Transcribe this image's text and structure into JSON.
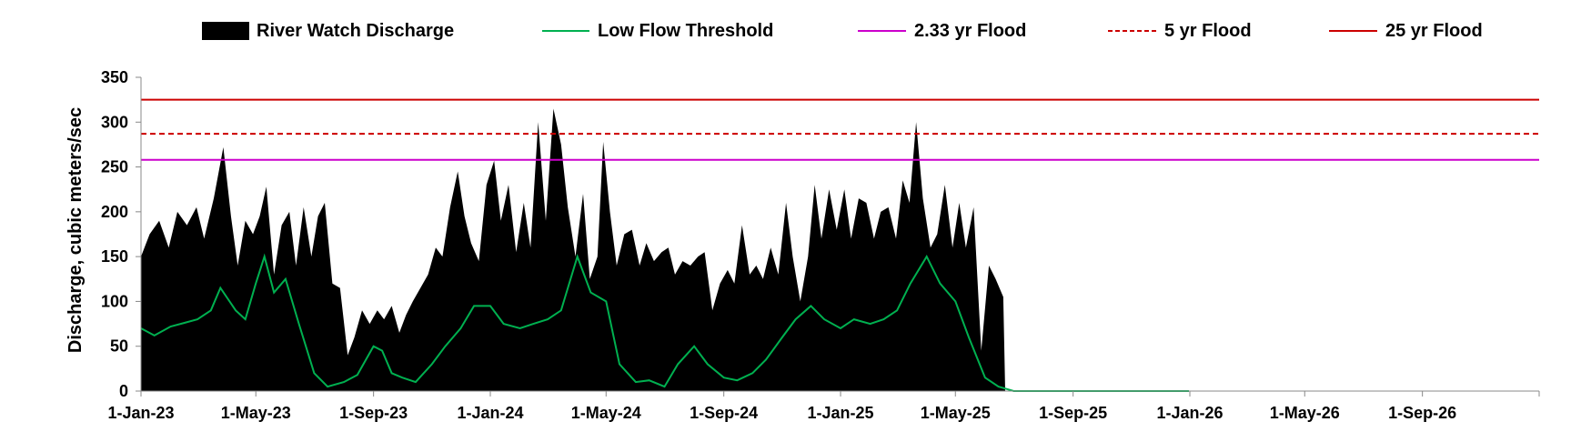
{
  "chart_data": {
    "type": "area",
    "title": "",
    "xlabel": "",
    "ylabel": "Discharge, cubic meters/sec",
    "ylim": [
      0,
      350
    ],
    "xlim": [
      "2023-01-01",
      "2026-12-31"
    ],
    "y_ticks": [
      "0",
      "50",
      "100",
      "150",
      "200",
      "250",
      "300",
      "350"
    ],
    "x_ticks": [
      "1-Jan-23",
      "1-May-23",
      "1-Sep-23",
      "1-Jan-24",
      "1-May-24",
      "1-Sep-24",
      "1-Jan-25",
      "1-May-25",
      "1-Sep-25",
      "1-Jan-26",
      "1-May-26",
      "1-Sep-26"
    ],
    "x_tick_dates": [
      "2023-01-01",
      "2023-05-01",
      "2023-09-01",
      "2024-01-01",
      "2024-05-01",
      "2024-09-01",
      "2025-01-01",
      "2025-05-01",
      "2025-09-01",
      "2026-01-01",
      "2026-05-01",
      "2026-09-01"
    ],
    "grid": false,
    "legend_position": "top",
    "legend": [
      {
        "label": "River Watch Discharge",
        "style": "area",
        "color": "#000000"
      },
      {
        "label": "Low Flow Threshold",
        "style": "line",
        "color": "#00b050"
      },
      {
        "label": "2.33 yr Flood",
        "style": "line",
        "color": "#cc00cc"
      },
      {
        "label": "5 yr Flood",
        "style": "dashed",
        "color": "#cc0000"
      },
      {
        "label": "25 yr Flood",
        "style": "line",
        "color": "#cc0000"
      }
    ],
    "series": [
      {
        "name": "River Watch Discharge",
        "kind": "area",
        "color": "#000000",
        "points": [
          [
            "2023-01-01",
            150
          ],
          [
            "2023-01-10",
            175
          ],
          [
            "2023-01-20",
            190
          ],
          [
            "2023-01-30",
            160
          ],
          [
            "2023-02-08",
            200
          ],
          [
            "2023-02-18",
            185
          ],
          [
            "2023-02-28",
            205
          ],
          [
            "2023-03-08",
            170
          ],
          [
            "2023-03-18",
            215
          ],
          [
            "2023-03-28",
            272
          ],
          [
            "2023-04-05",
            195
          ],
          [
            "2023-04-12",
            140
          ],
          [
            "2023-04-20",
            190
          ],
          [
            "2023-04-28",
            175
          ],
          [
            "2023-05-05",
            195
          ],
          [
            "2023-05-12",
            228
          ],
          [
            "2023-05-20",
            130
          ],
          [
            "2023-05-28",
            185
          ],
          [
            "2023-06-05",
            200
          ],
          [
            "2023-06-12",
            140
          ],
          [
            "2023-06-20",
            205
          ],
          [
            "2023-06-28",
            150
          ],
          [
            "2023-07-05",
            195
          ],
          [
            "2023-07-12",
            210
          ],
          [
            "2023-07-20",
            120
          ],
          [
            "2023-07-28",
            115
          ],
          [
            "2023-08-05",
            40
          ],
          [
            "2023-08-12",
            60
          ],
          [
            "2023-08-20",
            90
          ],
          [
            "2023-08-28",
            75
          ],
          [
            "2023-09-05",
            90
          ],
          [
            "2023-09-12",
            80
          ],
          [
            "2023-09-20",
            95
          ],
          [
            "2023-09-28",
            65
          ],
          [
            "2023-10-05",
            85
          ],
          [
            "2023-10-12",
            100
          ],
          [
            "2023-10-20",
            115
          ],
          [
            "2023-10-28",
            130
          ],
          [
            "2023-11-05",
            160
          ],
          [
            "2023-11-12",
            150
          ],
          [
            "2023-11-20",
            205
          ],
          [
            "2023-11-28",
            245
          ],
          [
            "2023-12-05",
            195
          ],
          [
            "2023-12-12",
            165
          ],
          [
            "2023-12-20",
            145
          ],
          [
            "2023-12-28",
            230
          ],
          [
            "2024-01-05",
            257
          ],
          [
            "2024-01-12",
            190
          ],
          [
            "2024-01-20",
            230
          ],
          [
            "2024-01-28",
            155
          ],
          [
            "2024-02-05",
            210
          ],
          [
            "2024-02-12",
            160
          ],
          [
            "2024-02-20",
            300
          ],
          [
            "2024-02-28",
            190
          ],
          [
            "2024-03-07",
            315
          ],
          [
            "2024-03-15",
            275
          ],
          [
            "2024-03-22",
            205
          ],
          [
            "2024-03-30",
            150
          ],
          [
            "2024-04-07",
            220
          ],
          [
            "2024-04-14",
            125
          ],
          [
            "2024-04-22",
            150
          ],
          [
            "2024-04-28",
            278
          ],
          [
            "2024-05-05",
            200
          ],
          [
            "2024-05-12",
            140
          ],
          [
            "2024-05-20",
            175
          ],
          [
            "2024-05-28",
            180
          ],
          [
            "2024-06-05",
            140
          ],
          [
            "2024-06-12",
            165
          ],
          [
            "2024-06-20",
            145
          ],
          [
            "2024-06-28",
            155
          ],
          [
            "2024-07-05",
            160
          ],
          [
            "2024-07-12",
            130
          ],
          [
            "2024-07-20",
            145
          ],
          [
            "2024-07-28",
            140
          ],
          [
            "2024-08-05",
            150
          ],
          [
            "2024-08-12",
            155
          ],
          [
            "2024-08-20",
            90
          ],
          [
            "2024-08-28",
            120
          ],
          [
            "2024-09-05",
            135
          ],
          [
            "2024-09-12",
            120
          ],
          [
            "2024-09-20",
            185
          ],
          [
            "2024-09-28",
            130
          ],
          [
            "2024-10-05",
            140
          ],
          [
            "2024-10-12",
            125
          ],
          [
            "2024-10-20",
            160
          ],
          [
            "2024-10-28",
            130
          ],
          [
            "2024-11-05",
            210
          ],
          [
            "2024-11-12",
            150
          ],
          [
            "2024-11-20",
            100
          ],
          [
            "2024-11-28",
            150
          ],
          [
            "2024-12-05",
            230
          ],
          [
            "2024-12-12",
            170
          ],
          [
            "2024-12-20",
            225
          ],
          [
            "2024-12-28",
            180
          ],
          [
            "2025-01-05",
            225
          ],
          [
            "2025-01-12",
            170
          ],
          [
            "2025-01-20",
            215
          ],
          [
            "2025-01-28",
            210
          ],
          [
            "2025-02-05",
            170
          ],
          [
            "2025-02-12",
            200
          ],
          [
            "2025-02-20",
            205
          ],
          [
            "2025-02-28",
            170
          ],
          [
            "2025-03-07",
            235
          ],
          [
            "2025-03-14",
            210
          ],
          [
            "2025-03-21",
            300
          ],
          [
            "2025-03-28",
            215
          ],
          [
            "2025-04-05",
            160
          ],
          [
            "2025-04-12",
            175
          ],
          [
            "2025-04-20",
            230
          ],
          [
            "2025-04-28",
            160
          ],
          [
            "2025-05-05",
            210
          ],
          [
            "2025-05-12",
            160
          ],
          [
            "2025-05-20",
            205
          ],
          [
            "2025-05-28",
            45
          ],
          [
            "2025-06-05",
            140
          ],
          [
            "2025-06-12",
            125
          ],
          [
            "2025-06-20",
            105
          ],
          [
            "2025-06-22",
            0
          ]
        ]
      },
      {
        "name": "Low Flow Threshold",
        "kind": "line",
        "color": "#00b050",
        "points": [
          [
            "2023-01-01",
            70
          ],
          [
            "2023-01-15",
            62
          ],
          [
            "2023-02-01",
            72
          ],
          [
            "2023-02-15",
            76
          ],
          [
            "2023-03-01",
            80
          ],
          [
            "2023-03-15",
            90
          ],
          [
            "2023-03-25",
            115
          ],
          [
            "2023-04-10",
            90
          ],
          [
            "2023-04-20",
            80
          ],
          [
            "2023-05-01",
            120
          ],
          [
            "2023-05-10",
            150
          ],
          [
            "2023-05-20",
            110
          ],
          [
            "2023-06-01",
            125
          ],
          [
            "2023-06-15",
            75
          ],
          [
            "2023-07-01",
            20
          ],
          [
            "2023-07-15",
            5
          ],
          [
            "2023-08-01",
            10
          ],
          [
            "2023-08-15",
            18
          ],
          [
            "2023-09-01",
            50
          ],
          [
            "2023-09-10",
            45
          ],
          [
            "2023-09-20",
            20
          ],
          [
            "2023-10-01",
            15
          ],
          [
            "2023-10-15",
            10
          ],
          [
            "2023-11-01",
            30
          ],
          [
            "2023-11-15",
            50
          ],
          [
            "2023-12-01",
            70
          ],
          [
            "2023-12-15",
            95
          ],
          [
            "2024-01-01",
            95
          ],
          [
            "2024-01-15",
            75
          ],
          [
            "2024-02-01",
            70
          ],
          [
            "2024-02-15",
            75
          ],
          [
            "2024-03-01",
            80
          ],
          [
            "2024-03-15",
            90
          ],
          [
            "2024-04-01",
            150
          ],
          [
            "2024-04-15",
            110
          ],
          [
            "2024-05-01",
            100
          ],
          [
            "2024-05-15",
            30
          ],
          [
            "2024-06-01",
            10
          ],
          [
            "2024-06-15",
            12
          ],
          [
            "2024-07-01",
            5
          ],
          [
            "2024-07-15",
            30
          ],
          [
            "2024-08-01",
            50
          ],
          [
            "2024-08-15",
            30
          ],
          [
            "2024-09-01",
            15
          ],
          [
            "2024-09-15",
            12
          ],
          [
            "2024-10-01",
            20
          ],
          [
            "2024-10-15",
            35
          ],
          [
            "2024-11-01",
            60
          ],
          [
            "2024-11-15",
            80
          ],
          [
            "2024-12-01",
            95
          ],
          [
            "2024-12-15",
            80
          ],
          [
            "2025-01-01",
            70
          ],
          [
            "2025-01-15",
            80
          ],
          [
            "2025-02-01",
            75
          ],
          [
            "2025-02-15",
            80
          ],
          [
            "2025-03-01",
            90
          ],
          [
            "2025-03-15",
            120
          ],
          [
            "2025-04-01",
            150
          ],
          [
            "2025-04-15",
            120
          ],
          [
            "2025-05-01",
            100
          ],
          [
            "2025-05-15",
            60
          ],
          [
            "2025-06-01",
            15
          ],
          [
            "2025-06-15",
            5
          ],
          [
            "2025-07-01",
            0
          ],
          [
            "2025-09-01",
            0
          ],
          [
            "2025-12-31",
            0
          ]
        ]
      },
      {
        "name": "2.33 yr Flood",
        "kind": "hline",
        "color": "#cc00cc",
        "value": 258
      },
      {
        "name": "5 yr Flood",
        "kind": "hline-dashed",
        "color": "#cc0000",
        "value": 287
      },
      {
        "name": "25 yr Flood",
        "kind": "hline",
        "color": "#cc0000",
        "value": 325
      }
    ]
  }
}
